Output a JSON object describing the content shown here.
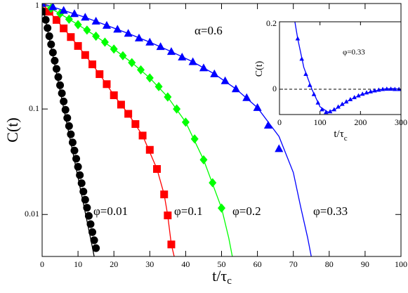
{
  "chart_data": [
    {
      "type": "line",
      "y_label": "C(t)",
      "x_label": {
        "text": "t/τ",
        "subscript": "c"
      },
      "annotation": "α=0.6",
      "ylog": true,
      "xlim": [
        0,
        100
      ],
      "xticks": [
        0,
        10,
        20,
        30,
        40,
        50,
        60,
        70,
        80,
        90,
        100
      ],
      "ylim": [
        0.004,
        1
      ],
      "yticks": [
        0.01,
        0.1,
        1
      ],
      "series": [
        {
          "name": "φ=0.01",
          "color": "#000000",
          "marker": "circle",
          "x": [
            0,
            0.5,
            1,
            1.5,
            2,
            2.5,
            3,
            3.5,
            4,
            4.5,
            5,
            5.5,
            6,
            6.5,
            7,
            7.5,
            8,
            8.5,
            9,
            9.5,
            10,
            10.5,
            11,
            11.5,
            12,
            12.5,
            13,
            13.5,
            14,
            14.5,
            15
          ],
          "values": [
            1,
            0.837,
            0.7,
            0.586,
            0.49,
            0.41,
            0.343,
            0.287,
            0.24,
            0.201,
            0.168,
            0.141,
            0.118,
            0.0983,
            0.0823,
            0.0689,
            0.0576,
            0.0482,
            0.0404,
            0.0338,
            0.0283,
            0.0236,
            0.0198,
            0.0165,
            0.0138,
            0.0116,
            0.0097,
            0.0081,
            0.0068,
            0.0057,
            0.0048
          ]
        },
        {
          "name": "φ=0.1",
          "color": "#ff0000",
          "marker": "square",
          "x": [
            0,
            2,
            4,
            6,
            8,
            10,
            12,
            14,
            16,
            18,
            20,
            22,
            24,
            26,
            28,
            30,
            32,
            34,
            35,
            36
          ],
          "values": [
            1,
            0.837,
            0.699,
            0.581,
            0.481,
            0.396,
            0.325,
            0.265,
            0.214,
            0.172,
            0.135,
            0.11,
            0.09,
            0.072,
            0.056,
            0.041,
            0.027,
            0.0155,
            0.0098,
            0.0052
          ]
        },
        {
          "name": "φ=0.2",
          "color": "#00ff00",
          "marker": "diamond",
          "x": [
            0,
            2.5,
            5,
            7.5,
            10,
            12.5,
            15,
            17.5,
            20,
            22.5,
            25,
            27.5,
            30,
            32.5,
            35,
            37.5,
            40,
            42.5,
            45,
            47.5,
            50
          ],
          "values": [
            1,
            0.9,
            0.8,
            0.71,
            0.63,
            0.56,
            0.49,
            0.43,
            0.37,
            0.32,
            0.275,
            0.235,
            0.197,
            0.163,
            0.13,
            0.1,
            0.075,
            0.052,
            0.033,
            0.02,
            0.0115
          ]
        },
        {
          "name": "φ=0.33",
          "color": "#0000ff",
          "marker": "triangle",
          "x": [
            0,
            3,
            6,
            9,
            12,
            15,
            18,
            21,
            24,
            27,
            30,
            33,
            36,
            39,
            42,
            45,
            48,
            51,
            54,
            57,
            60,
            63,
            66
          ],
          "values": [
            1,
            0.93,
            0.86,
            0.8,
            0.74,
            0.68,
            0.62,
            0.57,
            0.52,
            0.47,
            0.43,
            0.39,
            0.35,
            0.31,
            0.28,
            0.245,
            0.215,
            0.185,
            0.155,
            0.128,
            0.103,
            0.07,
            0.042
          ]
        }
      ],
      "fits": [
        {
          "color": "#000000",
          "x": [
            0,
            2,
            4,
            6,
            8,
            10,
            12,
            14,
            14.5
          ],
          "values": [
            1,
            0.468,
            0.219,
            0.102,
            0.0479,
            0.0224,
            0.0105,
            0.0049,
            0.004
          ]
        },
        {
          "color": "#ff0000",
          "x": [
            0,
            4,
            8,
            12,
            16,
            20,
            24,
            28,
            32,
            34,
            35,
            36,
            36.8
          ],
          "values": [
            1,
            0.699,
            0.481,
            0.325,
            0.214,
            0.135,
            0.09,
            0.056,
            0.027,
            0.0155,
            0.0098,
            0.0052,
            0.004
          ]
        },
        {
          "color": "#00ff00",
          "x": [
            0,
            5,
            10,
            15,
            20,
            25,
            30,
            35,
            40,
            45,
            50,
            52,
            53
          ],
          "values": [
            1,
            0.8,
            0.63,
            0.49,
            0.37,
            0.275,
            0.197,
            0.13,
            0.075,
            0.033,
            0.0115,
            0.006,
            0.004
          ]
        },
        {
          "color": "#0000ff",
          "x": [
            0,
            6,
            12,
            18,
            24,
            30,
            36,
            42,
            48,
            54,
            60,
            66,
            70,
            72,
            74,
            75
          ],
          "values": [
            1,
            0.86,
            0.74,
            0.62,
            0.52,
            0.43,
            0.35,
            0.28,
            0.215,
            0.155,
            0.103,
            0.055,
            0.025,
            0.012,
            0.006,
            0.004
          ]
        }
      ]
    },
    {
      "type": "line",
      "y_label": "C(t)",
      "x_label": {
        "text": "t/τ",
        "subscript": "c"
      },
      "annotation": "φ=0.33",
      "hline": 0,
      "xlim": [
        0,
        300
      ],
      "xticks": [
        0,
        100,
        200,
        300
      ],
      "ylim": [
        -0.075,
        0.2
      ],
      "yticks": [
        0,
        0.2
      ],
      "series": [
        {
          "color": "#0000ff",
          "marker": "triangle",
          "x": [
            45,
            55,
            65,
            75,
            85,
            95,
            105,
            115,
            125,
            135,
            145,
            155,
            165,
            175,
            185,
            195,
            205,
            215,
            225,
            235,
            245,
            255,
            265,
            275,
            285,
            295
          ],
          "values": [
            0.15,
            0.09,
            0.045,
            0.012,
            -0.015,
            -0.04,
            -0.06,
            -0.068,
            -0.066,
            -0.06,
            -0.052,
            -0.044,
            -0.037,
            -0.03,
            -0.024,
            -0.019,
            -0.014,
            -0.01,
            -0.007,
            -0.004,
            -0.002,
            0,
            0.001,
            0.001,
            0,
            0
          ]
        }
      ],
      "fits": [
        {
          "color": "#0000ff",
          "x": [
            38,
            45,
            60,
            80,
            100,
            120,
            140,
            170,
            200,
            230,
            260,
            280,
            300
          ],
          "values": [
            0.2,
            0.15,
            0.065,
            0,
            -0.052,
            -0.068,
            -0.058,
            -0.034,
            -0.017,
            -0.006,
            0.001,
            0.002,
            0
          ]
        }
      ]
    }
  ]
}
